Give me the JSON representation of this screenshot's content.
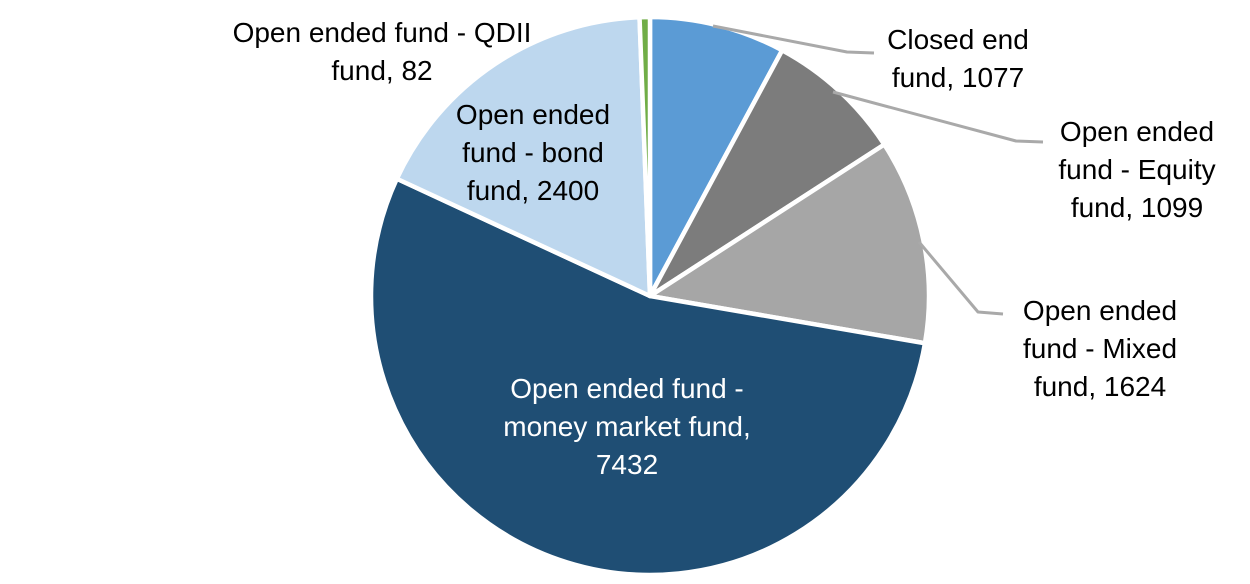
{
  "chart_data": {
    "type": "pie",
    "title": "",
    "total": 13714,
    "start_angle_deg": 0,
    "direction": "clockwise",
    "slice_border_color": "#FFFFFF",
    "leader_line_color": "#A9A9A9",
    "slices": [
      {
        "id": "closed-end-fund",
        "label": "Closed end fund",
        "value": 1077,
        "color": "#5B9BD5",
        "label_color": "#000000",
        "label_lines": [
          "Closed end",
          "fund, 1077"
        ]
      },
      {
        "id": "open-ended-equity-fund",
        "label": "Open ended fund - Equity fund",
        "value": 1099,
        "color": "#7C7C7C",
        "label_color": "#000000",
        "label_lines": [
          "Open ended",
          "fund - Equity",
          "fund, 1099"
        ]
      },
      {
        "id": "open-ended-mixed-fund",
        "label": "Open ended fund - Mixed fund",
        "value": 1624,
        "color": "#A6A6A6",
        "label_color": "#000000",
        "label_lines": [
          "Open ended",
          "fund - Mixed",
          "fund, 1624"
        ]
      },
      {
        "id": "open-ended-money-market-fund",
        "label": "Open ended fund - money market fund",
        "value": 7432,
        "color": "#1F4E74",
        "label_color": "#FFFFFF",
        "label_lines": [
          "Open ended fund -",
          "money market fund,",
          "7432"
        ]
      },
      {
        "id": "open-ended-bond-fund",
        "label": "Open ended fund - bond fund",
        "value": 2400,
        "color": "#BDD7EE",
        "label_color": "#000000",
        "label_lines": [
          "Open ended",
          "fund - bond",
          "fund, 2400"
        ]
      },
      {
        "id": "open-ended-qdii-fund",
        "label": "Open ended fund - QDII fund",
        "value": 82,
        "color": "#70AD47",
        "label_color": "#000000",
        "label_lines": [
          "Open ended fund - QDII",
          "fund, 82"
        ]
      }
    ]
  }
}
